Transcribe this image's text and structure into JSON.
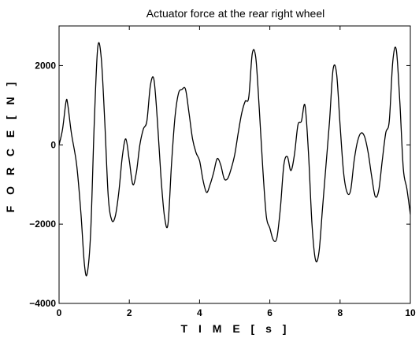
{
  "chart_data": {
    "type": "line",
    "title": "Actuator force at the rear right wheel",
    "xlabel": "T I M E   [ s ]",
    "ylabel": "F O R C E   [ N ]",
    "xlim": [
      0,
      10
    ],
    "ylim": [
      -4000,
      3000
    ],
    "xticks": [
      0,
      2,
      4,
      6,
      8,
      10
    ],
    "xtick_labels": [
      "0",
      "2",
      "4",
      "6",
      "8",
      "10"
    ],
    "yticks": [
      -4000,
      -2000,
      0,
      2000
    ],
    "ytick_labels": [
      "−4000",
      "−2000",
      "0",
      "2000"
    ],
    "grid": false,
    "series": [
      {
        "color": "#000000",
        "x": [
          0,
          0.1,
          0.2,
          0.25,
          0.35,
          0.5,
          0.62,
          0.72,
          0.8,
          0.9,
          1.0,
          1.1,
          1.2,
          1.3,
          1.4,
          1.5,
          1.6,
          1.7,
          1.8,
          1.9,
          2.0,
          2.1,
          2.2,
          2.3,
          2.4,
          2.5,
          2.6,
          2.7,
          2.8,
          2.9,
          3.0,
          3.1,
          3.2,
          3.3,
          3.4,
          3.5,
          3.6,
          3.7,
          3.8,
          3.9,
          4.0,
          4.1,
          4.2,
          4.3,
          4.4,
          4.5,
          4.6,
          4.7,
          4.8,
          4.9,
          5.0,
          5.1,
          5.2,
          5.3,
          5.4,
          5.5,
          5.6,
          5.7,
          5.8,
          5.9,
          6.0,
          6.1,
          6.2,
          6.3,
          6.4,
          6.5,
          6.6,
          6.7,
          6.8,
          6.9,
          7.0,
          7.1,
          7.2,
          7.3,
          7.4,
          7.5,
          7.6,
          7.7,
          7.8,
          7.9,
          8.0,
          8.1,
          8.2,
          8.3,
          8.4,
          8.5,
          8.6,
          8.7,
          8.8,
          8.9,
          9.0,
          9.1,
          9.2,
          9.3,
          9.4,
          9.5,
          9.6,
          9.7,
          9.8,
          9.9,
          10.0
        ],
        "y": [
          0,
          400,
          1100,
          1000,
          300,
          -500,
          -1700,
          -3000,
          -3250,
          -2200,
          500,
          2450,
          2200,
          600,
          -1300,
          -1900,
          -1800,
          -1200,
          -300,
          150,
          -400,
          -1000,
          -700,
          0,
          400,
          600,
          1500,
          1650,
          600,
          -800,
          -1800,
          -2000,
          -500,
          700,
          1300,
          1400,
          1400,
          800,
          150,
          -200,
          -400,
          -900,
          -1200,
          -1000,
          -700,
          -350,
          -500,
          -850,
          -850,
          -600,
          -250,
          300,
          800,
          1100,
          1200,
          2300,
          2200,
          900,
          -600,
          -1800,
          -2100,
          -2400,
          -2350,
          -1600,
          -500,
          -300,
          -650,
          -250,
          500,
          600,
          1000,
          -200,
          -2000,
          -2900,
          -2700,
          -1600,
          -500,
          600,
          1900,
          1800,
          500,
          -700,
          -1200,
          -1150,
          -400,
          100,
          300,
          200,
          -200,
          -800,
          -1300,
          -1150,
          -400,
          300,
          600,
          2100,
          2400,
          1100,
          -600,
          -1100,
          -1750
        ]
      }
    ]
  }
}
